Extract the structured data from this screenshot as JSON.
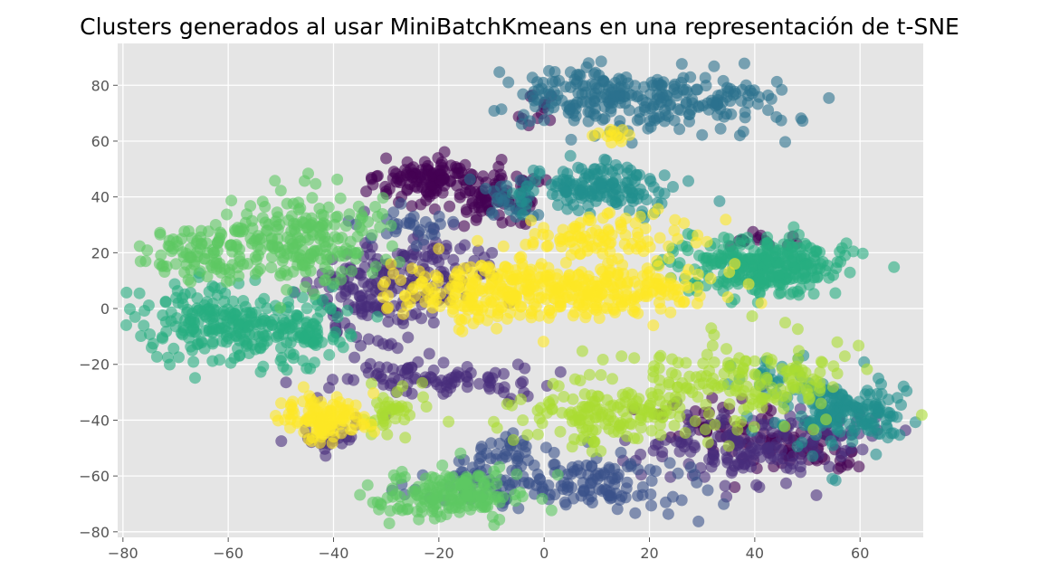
{
  "chart_data": {
    "type": "scatter",
    "title": "Clusters generados al usar MiniBatchKmeans en una representación de t-SNE",
    "xlabel": "",
    "ylabel": "",
    "xlim": [
      -81,
      72
    ],
    "ylim": [
      -82,
      95
    ],
    "xticks": [
      -80,
      -60,
      -40,
      -20,
      0,
      20,
      40,
      60
    ],
    "yticks": [
      -80,
      -60,
      -40,
      -20,
      0,
      20,
      40,
      60,
      80
    ],
    "xtick_labels": [
      "−80",
      "−60",
      "−40",
      "−20",
      "0",
      "20",
      "40",
      "60"
    ],
    "ytick_labels": [
      "−80",
      "−60",
      "−40",
      "−20",
      "0",
      "20",
      "40",
      "60",
      "80"
    ],
    "grid": true,
    "legend": "none",
    "style": {
      "plot_background": "#e5e5e5",
      "grid_color": "#ffffff",
      "point_opacity": 0.6,
      "colormap": "viridis"
    },
    "clusters": [
      {
        "id": 0,
        "color": "#440154",
        "regions": [
          {
            "cx": -22,
            "cy": 45,
            "sx": 5,
            "sy": 4.5,
            "n": 120
          },
          {
            "cx": -8,
            "cy": 40,
            "sx": 4,
            "sy": 5,
            "n": 80
          },
          {
            "cx": 48,
            "cy": -52,
            "sx": 6,
            "sy": 4,
            "n": 60
          },
          {
            "cx": 33,
            "cy": -42,
            "sx": 5,
            "sy": 5,
            "n": 40
          },
          {
            "cx": -3,
            "cy": 70,
            "sx": 2,
            "sy": 3,
            "n": 12
          },
          {
            "cx": 40,
            "cy": 25,
            "sx": 4,
            "sy": 2,
            "n": 15
          }
        ]
      },
      {
        "id": 1,
        "color": "#472d7b",
        "regions": [
          {
            "cx": -32,
            "cy": 5,
            "sx": 6,
            "sy": 9,
            "n": 140
          },
          {
            "cx": -20,
            "cy": 15,
            "sx": 5,
            "sy": 7,
            "n": 60
          },
          {
            "cx": 35,
            "cy": -50,
            "sx": 9,
            "sy": 7,
            "n": 120
          },
          {
            "cx": 50,
            "cy": -45,
            "sx": 6,
            "sy": 4,
            "n": 50
          },
          {
            "cx": -20,
            "cy": -26,
            "sx": 10,
            "sy": 3,
            "n": 90
          },
          {
            "cx": -40,
            "cy": -45,
            "sx": 4,
            "sy": 4,
            "n": 25
          }
        ]
      },
      {
        "id": 2,
        "color": "#3b528b",
        "regions": [
          {
            "cx": 5,
            "cy": -62,
            "sx": 12,
            "sy": 5,
            "n": 170
          },
          {
            "cx": -5,
            "cy": -50,
            "sx": 4,
            "sy": 3,
            "n": 30
          },
          {
            "cx": -25,
            "cy": 30,
            "sx": 5,
            "sy": 4,
            "n": 30
          }
        ]
      },
      {
        "id": 3,
        "color": "#2c728e",
        "regions": [
          {
            "cx": 20,
            "cy": 75,
            "sx": 12,
            "sy": 6,
            "n": 220
          },
          {
            "cx": 5,
            "cy": 78,
            "sx": 5,
            "sy": 4,
            "n": 50
          },
          {
            "cx": -5,
            "cy": 40,
            "sx": 4,
            "sy": 5,
            "n": 30
          }
        ]
      },
      {
        "id": 4,
        "color": "#21908d",
        "regions": [
          {
            "cx": 10,
            "cy": 43,
            "sx": 7,
            "sy": 5,
            "n": 150
          },
          {
            "cx": 57,
            "cy": -37,
            "sx": 6,
            "sy": 6,
            "n": 170
          },
          {
            "cx": 43,
            "cy": -25,
            "sx": 4,
            "sy": 4,
            "n": 25
          }
        ]
      },
      {
        "id": 5,
        "color": "#27ad81",
        "regions": [
          {
            "cx": -60,
            "cy": -5,
            "sx": 8,
            "sy": 7,
            "n": 230
          },
          {
            "cx": -45,
            "cy": -8,
            "sx": 4,
            "sy": 5,
            "n": 60
          },
          {
            "cx": 42,
            "cy": 15,
            "sx": 8,
            "sy": 5,
            "n": 280
          }
        ]
      },
      {
        "id": 6,
        "color": "#5dc863",
        "regions": [
          {
            "cx": -45,
            "cy": 25,
            "sx": 8,
            "sy": 8,
            "n": 200
          },
          {
            "cx": -65,
            "cy": 20,
            "sx": 6,
            "sy": 5,
            "n": 100
          },
          {
            "cx": -18,
            "cy": -67,
            "sx": 7,
            "sy": 4,
            "n": 170
          }
        ]
      },
      {
        "id": 7,
        "color": "#aadc32",
        "regions": [
          {
            "cx": 38,
            "cy": -25,
            "sx": 10,
            "sy": 7,
            "n": 160
          },
          {
            "cx": 12,
            "cy": -38,
            "sx": 9,
            "sy": 6,
            "n": 150
          },
          {
            "cx": -30,
            "cy": -38,
            "sx": 3,
            "sy": 4,
            "n": 40
          }
        ]
      },
      {
        "id": 8,
        "color": "#fde725",
        "regions": [
          {
            "cx": -10,
            "cy": 5,
            "sx": 9,
            "sy": 6,
            "n": 220
          },
          {
            "cx": 13,
            "cy": 8,
            "sx": 10,
            "sy": 5,
            "n": 200
          },
          {
            "cx": 12,
            "cy": 26,
            "sx": 8,
            "sy": 4,
            "n": 90
          },
          {
            "cx": -42,
            "cy": -40,
            "sx": 4,
            "sy": 4,
            "n": 120
          },
          {
            "cx": 14,
            "cy": 62,
            "sx": 3,
            "sy": 1.5,
            "n": 12
          }
        ]
      }
    ]
  }
}
